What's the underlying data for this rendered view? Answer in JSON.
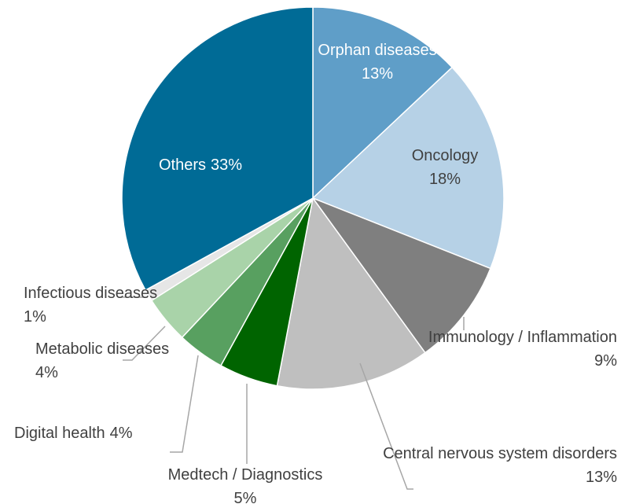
{
  "chart_data": {
    "type": "pie",
    "categories": [
      "Orphan diseases",
      "Oncology",
      "Immunology / Inflammation",
      "Central nervous system disorders",
      "Medtech / Diagnostics",
      "Digital health",
      "Metabolic diseases",
      "Infectious diseases",
      "Others"
    ],
    "values": [
      13,
      18,
      9,
      13,
      5,
      4,
      4,
      1,
      33
    ],
    "value_labels": [
      "13%",
      "18%",
      "9%",
      "13%",
      "5%",
      "4%",
      "4%",
      "1%",
      "33%"
    ],
    "colors": [
      "#5f9ec8",
      "#b6d1e6",
      "#7f7f7f",
      "#bfbfbf",
      "#006400",
      "#58a060",
      "#a9d3a9",
      "#e6e6e6",
      "#006b96"
    ]
  }
}
